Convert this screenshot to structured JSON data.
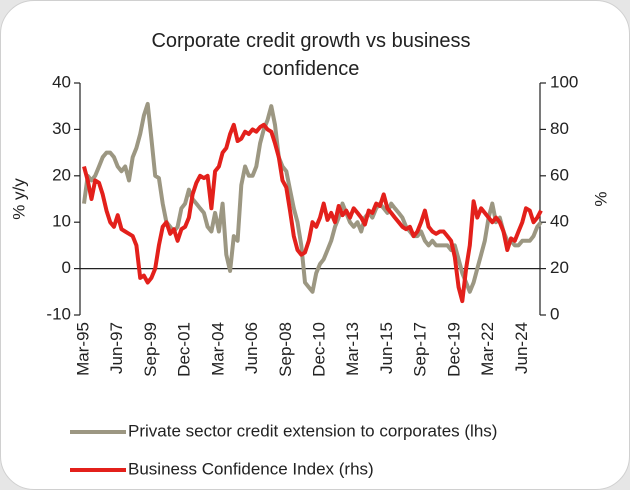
{
  "chart_data": {
    "type": "line",
    "title": "Corporate credit growth vs business confidence",
    "ylabel": "% y/y",
    "y2label": "%",
    "categories": [
      "Mar-95",
      null,
      null,
      null,
      null,
      null,
      null,
      null,
      null,
      "Jun-97",
      null,
      null,
      null,
      null,
      null,
      null,
      null,
      null,
      "Sep-99",
      null,
      null,
      null,
      null,
      null,
      null,
      null,
      null,
      "Dec-01",
      null,
      null,
      null,
      null,
      null,
      null,
      null,
      null,
      "Mar-04",
      null,
      null,
      null,
      null,
      null,
      null,
      null,
      null,
      "Jun-06",
      null,
      null,
      null,
      null,
      null,
      null,
      null,
      null,
      "Sep-08",
      null,
      null,
      null,
      null,
      null,
      null,
      null,
      null,
      "Dec-10",
      null,
      null,
      null,
      null,
      null,
      null,
      null,
      null,
      "Mar-13",
      null,
      null,
      null,
      null,
      null,
      null,
      null,
      null,
      "Jun-15",
      null,
      null,
      null,
      null,
      null,
      null,
      null,
      null,
      "Sep-17",
      null,
      null,
      null,
      null,
      null,
      null,
      null,
      null,
      "Dec-19",
      null,
      null,
      null,
      null,
      null,
      null,
      null,
      null,
      "Mar-22",
      null,
      null,
      null,
      null,
      null,
      null,
      null,
      null,
      "Jun-24",
      null,
      null,
      null,
      null,
      null
    ],
    "series": [
      {
        "name": "Private sector credit extension to corporates (lhs)",
        "color": "#9c9782",
        "axis": "y",
        "values": [
          14,
          20,
          19,
          20,
          22,
          24,
          25,
          25,
          24,
          22,
          21,
          22,
          19,
          24,
          26,
          29,
          33,
          35.5,
          28,
          20,
          19.5,
          14,
          10,
          9,
          8,
          9,
          13,
          14,
          17,
          15,
          14,
          13,
          12,
          9,
          8,
          12,
          8,
          14,
          3,
          -0.5,
          7,
          6,
          18,
          22,
          20,
          20,
          22,
          27,
          30,
          32,
          35,
          31,
          24,
          22,
          21,
          17,
          13,
          10,
          5,
          -3,
          -4,
          -5,
          -1,
          1,
          2,
          4,
          6,
          9,
          11,
          14,
          12,
          10,
          9,
          10,
          8,
          11,
          12,
          11,
          13,
          14,
          13,
          12,
          14,
          13,
          12,
          11,
          9,
          8,
          7,
          7,
          8,
          6,
          5,
          6,
          5,
          5,
          5,
          5,
          4,
          5,
          2,
          -1,
          -3,
          -5,
          -3,
          0,
          3,
          6,
          11,
          14,
          10,
          11,
          8,
          6,
          6,
          5,
          5,
          6,
          6,
          6,
          7,
          9,
          10
        ]
      },
      {
        "name": "Business Confidence Index (rhs)",
        "color": "#e3201b",
        "axis": "y2",
        "values": [
          64,
          58,
          50,
          58,
          57,
          52,
          45,
          40,
          38,
          43,
          37,
          36,
          35,
          34,
          30,
          16,
          17,
          14,
          16,
          20,
          30,
          38,
          40,
          35,
          37,
          32,
          37,
          38,
          42,
          52,
          57,
          60,
          59,
          60,
          46,
          62,
          64,
          70,
          72,
          78,
          82,
          75,
          76,
          79,
          78,
          80,
          79,
          81,
          82,
          80,
          79,
          74,
          68,
          58,
          55,
          45,
          34,
          28,
          26,
          27,
          32,
          40,
          38,
          42,
          48,
          41,
          44,
          40,
          47,
          43,
          45,
          42,
          46,
          44,
          42,
          39,
          45,
          44,
          48,
          47,
          52,
          46,
          44,
          42,
          40,
          38,
          37,
          38,
          34,
          36,
          40,
          45,
          38,
          36,
          35,
          36,
          36,
          34,
          32,
          25,
          12,
          6,
          20,
          30,
          49,
          42,
          46,
          44,
          42,
          40,
          42,
          40,
          36,
          28,
          33,
          32,
          36,
          40,
          46,
          45,
          40,
          42,
          45
        ]
      }
    ],
    "ylim": [
      -10,
      40
    ],
    "yticks": [
      -10,
      0,
      10,
      20,
      30,
      40
    ],
    "y2lim": [
      0,
      100
    ],
    "y2ticks": [
      0,
      20,
      40,
      60,
      80,
      100
    ],
    "legend": "bottom"
  }
}
